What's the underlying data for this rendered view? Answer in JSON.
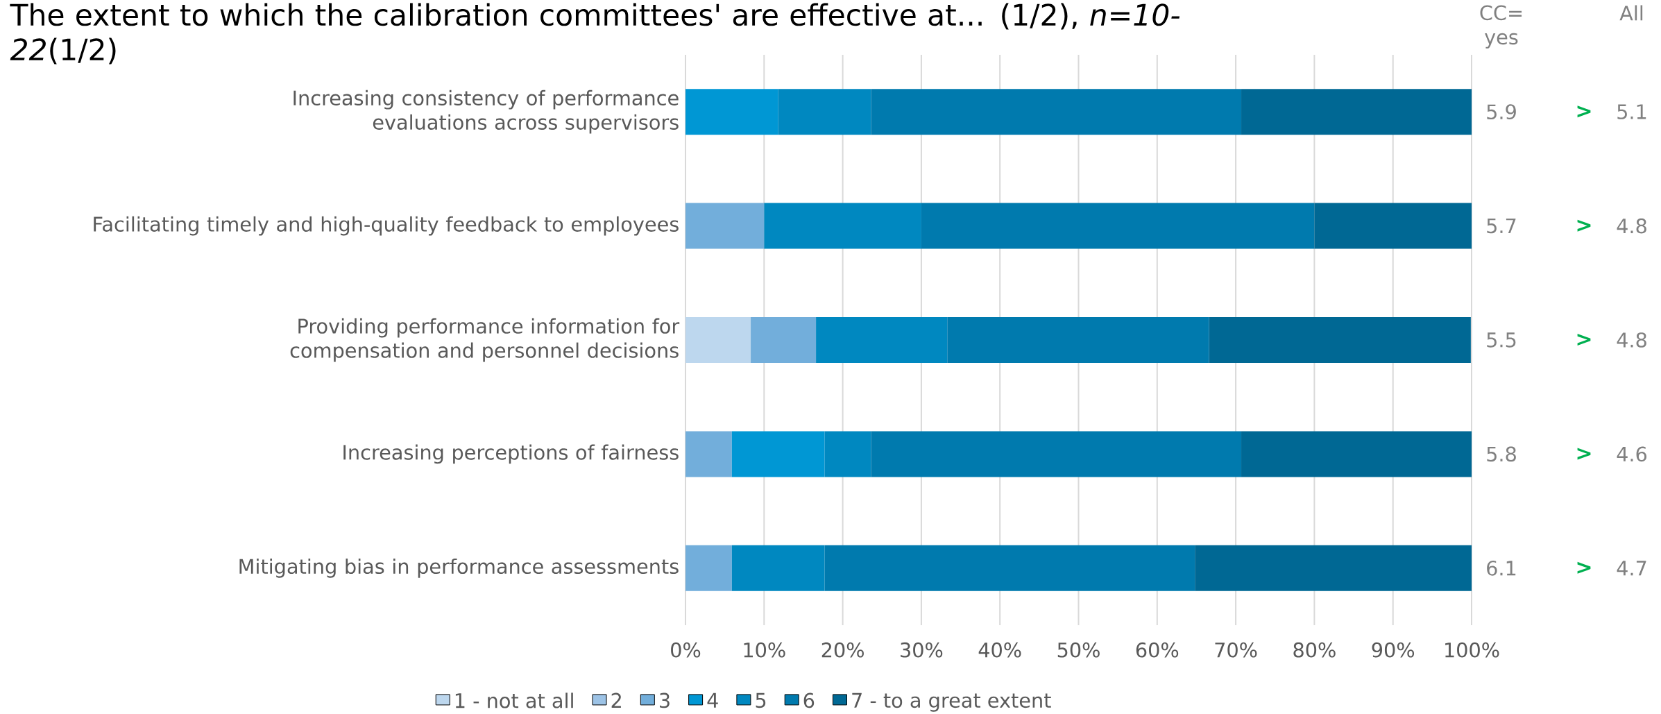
{
  "chart_data": {
    "type": "bar",
    "orientation": "horizontal",
    "stacked": true,
    "title": "The extent to which the calibration committees' are effective at... (1/2), *n=10-22*(1/2)",
    "categories": [
      "Increasing consistency of performance evaluations across supervisors",
      "Facilitating timely and high-quality feedback to employees",
      "Providing performance information for compensation and personnel decisions",
      "Increasing perceptions of fairness",
      "Mitigating bias in performance assessments"
    ],
    "series": [
      {
        "name": "1 - not at all",
        "color": "#bdd7ee",
        "values": [
          null,
          null,
          8.3,
          null,
          null
        ]
      },
      {
        "name": "2",
        "color": "#9dc3e6",
        "values": [
          null,
          null,
          null,
          null,
          null
        ]
      },
      {
        "name": "3",
        "color": "#72aedb",
        "values": [
          null,
          10,
          8.3,
          5.9,
          5.9
        ]
      },
      {
        "name": "4",
        "color": "#0097d4",
        "values": [
          11.8,
          null,
          null,
          11.8,
          null
        ]
      },
      {
        "name": "5",
        "color": "#0088c0",
        "values": [
          11.8,
          20,
          16.7,
          5.9,
          11.8
        ]
      },
      {
        "name": "6",
        "color": "#007aae",
        "values": [
          47.1,
          50,
          33.3,
          47.1,
          47.1
        ]
      },
      {
        "name": "7 - to a great extent",
        "color": "#006894",
        "values": [
          29.3,
          20,
          33.3,
          29.3,
          35.2
        ]
      }
    ],
    "xlim": [
      0,
      100
    ],
    "xticks": [
      {
        "value": 0,
        "label": "0%"
      },
      {
        "value": 10,
        "label": "10%"
      },
      {
        "value": 20,
        "label": "20%"
      },
      {
        "value": 30,
        "label": "30%"
      },
      {
        "value": 40,
        "label": "40%"
      },
      {
        "value": 50,
        "label": "50%"
      },
      {
        "value": 60,
        "label": "60%"
      },
      {
        "value": 70,
        "label": "70%"
      },
      {
        "value": 80,
        "label": "80%"
      },
      {
        "value": 90,
        "label": "90%"
      },
      {
        "value": 100,
        "label": "100%"
      }
    ],
    "grid": "x",
    "legend": "bottom",
    "annotations": [
      "CC= yes",
      "All",
      "5.9",
      ">",
      "5.1",
      "5.7",
      ">",
      "4.8",
      "5.5",
      ">",
      "4.8",
      "5.8",
      ">",
      "4.6",
      "6.1",
      ">",
      "4.7"
    ]
  }
}
